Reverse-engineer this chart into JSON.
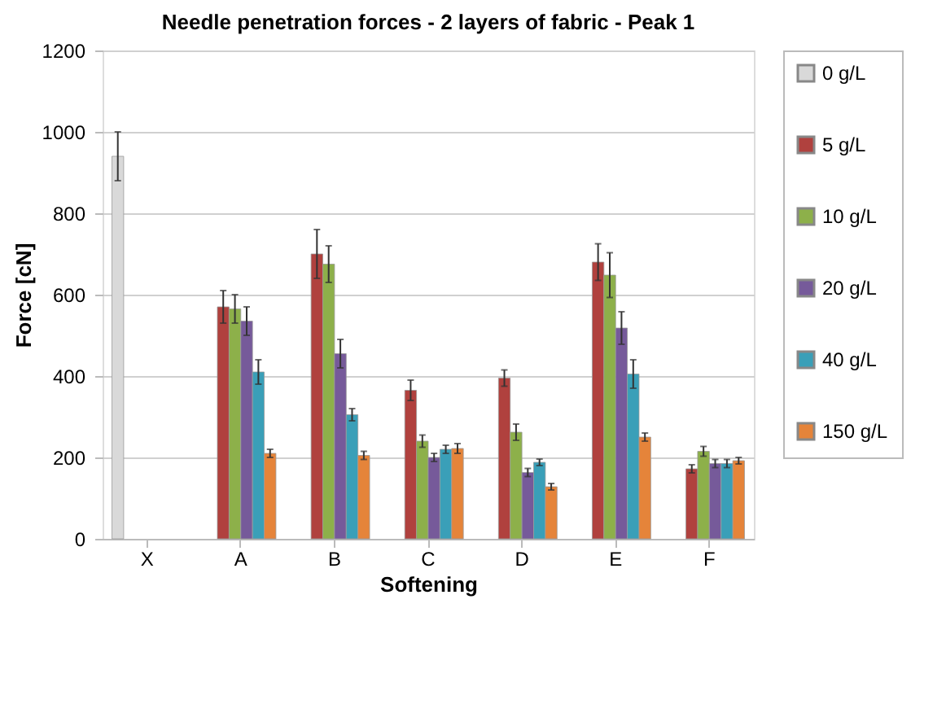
{
  "chart_data": {
    "type": "bar",
    "title": "Needle penetration forces  - 2 layers of fabric - Peak 1",
    "xlabel": "Softening",
    "ylabel": "Force [cN]",
    "categories": [
      "X",
      "A",
      "B",
      "C",
      "D",
      "E",
      "F"
    ],
    "series": [
      {
        "name": "0 g/L",
        "color": "#d9d9d9",
        "values": [
          940,
          null,
          null,
          null,
          null,
          null,
          null
        ],
        "errors": [
          60,
          null,
          null,
          null,
          null,
          null,
          null
        ]
      },
      {
        "name": "5 g/L",
        "color": "#b0413e",
        "values": [
          null,
          570,
          700,
          365,
          395,
          680,
          172
        ],
        "errors": [
          null,
          40,
          60,
          25,
          20,
          45,
          10
        ]
      },
      {
        "name": "10 g/L",
        "color": "#8db04a",
        "values": [
          null,
          565,
          675,
          240,
          262,
          648,
          215
        ],
        "errors": [
          null,
          35,
          45,
          15,
          20,
          55,
          12
        ]
      },
      {
        "name": "20 g/L",
        "color": "#765a9a",
        "values": [
          null,
          535,
          455,
          200,
          163,
          518,
          185
        ],
        "errors": [
          null,
          35,
          35,
          10,
          10,
          40,
          10
        ]
      },
      {
        "name": "40 g/L",
        "color": "#3a9fb8",
        "values": [
          null,
          410,
          305,
          220,
          188,
          405,
          185
        ],
        "errors": [
          null,
          30,
          15,
          10,
          8,
          35,
          10
        ]
      },
      {
        "name": "150 g/L",
        "color": "#e5843a",
        "values": [
          null,
          210,
          205,
          222,
          128,
          250,
          192
        ],
        "errors": [
          null,
          10,
          10,
          12,
          8,
          10,
          8
        ]
      }
    ],
    "ylim": [
      0,
      1200
    ],
    "yticks": [
      0,
      200,
      400,
      600,
      800,
      1000,
      1200
    ],
    "grid": "y",
    "legend": "right"
  }
}
